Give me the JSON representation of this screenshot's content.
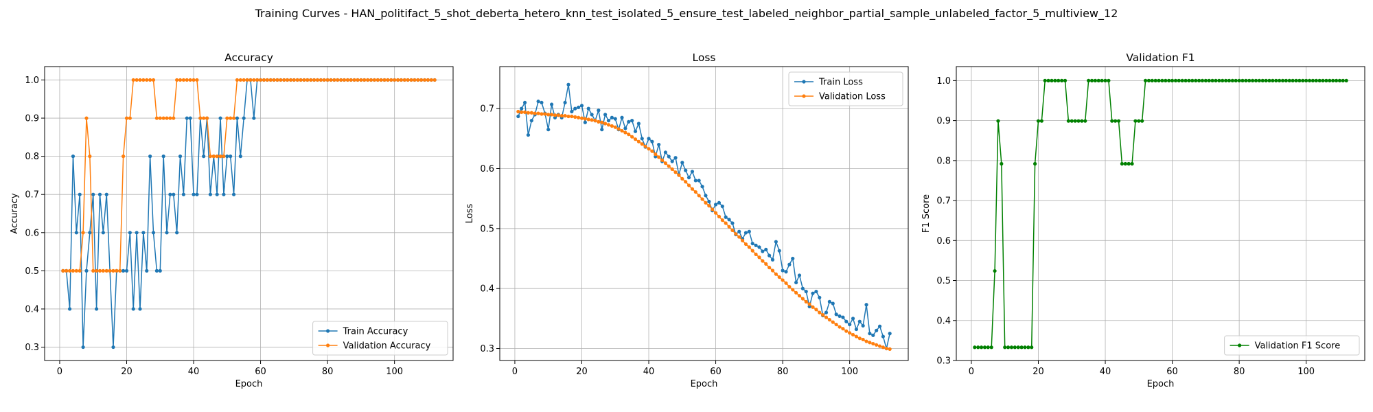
{
  "figure": {
    "suptitle": "Training Curves - HAN_politifact_5_shot_deberta_hetero_knn_test_isolated_5_ensure_test_labeled_neighbor_partial_sample_unlabeled_factor_5_multiview_12"
  },
  "colors": {
    "train": "#1f77b4",
    "validation": "#ff7f0e",
    "f1": "#008000",
    "grid": "#b0b0b0"
  },
  "chart_data": [
    {
      "type": "line",
      "title": "Accuracy",
      "xlabel": "Epoch",
      "ylabel": "Accuracy",
      "xlim": [
        -4.5,
        117.5
      ],
      "ylim": [
        0.265,
        1.035
      ],
      "xticks": [
        0,
        20,
        40,
        60,
        80,
        100
      ],
      "yticks": [
        0.3,
        0.4,
        0.5,
        0.6,
        0.7,
        0.8,
        0.9,
        1.0
      ],
      "ytick_labels": [
        "0.3",
        "0.4",
        "0.5",
        "0.6",
        "0.7",
        "0.8",
        "0.9",
        "1.0"
      ],
      "grid": true,
      "legend": "lower-right",
      "series": [
        {
          "name": "Train Accuracy",
          "color": "#1f77b4",
          "values": [
            0.5,
            0.5,
            0.4,
            0.8,
            0.6,
            0.7,
            0.3,
            0.5,
            0.6,
            0.7,
            0.4,
            0.7,
            0.6,
            0.7,
            0.5,
            0.3,
            0.5,
            0.5,
            0.5,
            0.5,
            0.6,
            0.4,
            0.6,
            0.4,
            0.6,
            0.5,
            0.8,
            0.6,
            0.5,
            0.5,
            0.8,
            0.6,
            0.7,
            0.7,
            0.6,
            0.8,
            0.7,
            0.9,
            0.9,
            0.7,
            0.7,
            0.9,
            0.8,
            0.9,
            0.7,
            0.8,
            0.7,
            0.9,
            0.7,
            0.8,
            0.8,
            0.7,
            0.9,
            0.8,
            0.9,
            1.0,
            1.0,
            0.9,
            1.0,
            1.0,
            1.0,
            1.0,
            1.0,
            1.0,
            1.0,
            1.0,
            1.0,
            1.0,
            1.0,
            1.0,
            1.0,
            1.0,
            1.0,
            1.0,
            1.0,
            1.0,
            1.0,
            1.0,
            1.0,
            1.0,
            1.0,
            1.0,
            1.0,
            1.0,
            1.0,
            1.0,
            1.0,
            1.0,
            1.0,
            1.0,
            1.0,
            1.0,
            1.0,
            1.0,
            1.0,
            1.0,
            1.0,
            1.0,
            1.0,
            1.0,
            1.0,
            1.0,
            1.0,
            1.0,
            1.0,
            1.0,
            1.0,
            1.0,
            1.0,
            1.0,
            1.0,
            1.0
          ]
        },
        {
          "name": "Validation Accuracy",
          "color": "#ff7f0e",
          "values": [
            0.5,
            0.5,
            0.5,
            0.5,
            0.5,
            0.5,
            0.6,
            0.9,
            0.8,
            0.5,
            0.5,
            0.5,
            0.5,
            0.5,
            0.5,
            0.5,
            0.5,
            0.5,
            0.8,
            0.9,
            0.9,
            1.0,
            1.0,
            1.0,
            1.0,
            1.0,
            1.0,
            1.0,
            0.9,
            0.9,
            0.9,
            0.9,
            0.9,
            0.9,
            1.0,
            1.0,
            1.0,
            1.0,
            1.0,
            1.0,
            1.0,
            0.9,
            0.9,
            0.9,
            0.8,
            0.8,
            0.8,
            0.8,
            0.8,
            0.9,
            0.9,
            0.9,
            1.0,
            1.0,
            1.0,
            1.0,
            1.0,
            1.0,
            1.0,
            1.0,
            1.0,
            1.0,
            1.0,
            1.0,
            1.0,
            1.0,
            1.0,
            1.0,
            1.0,
            1.0,
            1.0,
            1.0,
            1.0,
            1.0,
            1.0,
            1.0,
            1.0,
            1.0,
            1.0,
            1.0,
            1.0,
            1.0,
            1.0,
            1.0,
            1.0,
            1.0,
            1.0,
            1.0,
            1.0,
            1.0,
            1.0,
            1.0,
            1.0,
            1.0,
            1.0,
            1.0,
            1.0,
            1.0,
            1.0,
            1.0,
            1.0,
            1.0,
            1.0,
            1.0,
            1.0,
            1.0,
            1.0,
            1.0,
            1.0,
            1.0,
            1.0,
            1.0
          ]
        }
      ]
    },
    {
      "type": "line",
      "title": "Loss",
      "xlabel": "Epoch",
      "ylabel": "Loss",
      "xlim": [
        -4.5,
        117.5
      ],
      "ylim": [
        0.28,
        0.77
      ],
      "xticks": [
        0,
        20,
        40,
        60,
        80,
        100
      ],
      "yticks": [
        0.3,
        0.4,
        0.5,
        0.6,
        0.7
      ],
      "ytick_labels": [
        "0.3",
        "0.4",
        "0.5",
        "0.6",
        "0.7"
      ],
      "grid": true,
      "legend": "top-right",
      "series": [
        {
          "name": "Train Loss",
          "color": "#1f77b4",
          "values": [
            0.687,
            0.7,
            0.71,
            0.656,
            0.68,
            0.69,
            0.712,
            0.71,
            0.692,
            0.665,
            0.707,
            0.685,
            0.69,
            0.685,
            0.71,
            0.74,
            0.695,
            0.7,
            0.702,
            0.705,
            0.677,
            0.7,
            0.69,
            0.68,
            0.697,
            0.665,
            0.69,
            0.68,
            0.685,
            0.683,
            0.665,
            0.685,
            0.667,
            0.678,
            0.68,
            0.662,
            0.675,
            0.65,
            0.636,
            0.65,
            0.645,
            0.62,
            0.64,
            0.612,
            0.627,
            0.62,
            0.612,
            0.618,
            0.59,
            0.61,
            0.597,
            0.585,
            0.595,
            0.58,
            0.58,
            0.57,
            0.555,
            0.545,
            0.53,
            0.54,
            0.543,
            0.537,
            0.519,
            0.515,
            0.509,
            0.49,
            0.495,
            0.483,
            0.493,
            0.495,
            0.475,
            0.472,
            0.469,
            0.462,
            0.465,
            0.455,
            0.448,
            0.478,
            0.463,
            0.43,
            0.428,
            0.44,
            0.45,
            0.41,
            0.422,
            0.4,
            0.395,
            0.37,
            0.392,
            0.395,
            0.385,
            0.355,
            0.36,
            0.378,
            0.375,
            0.357,
            0.354,
            0.352,
            0.345,
            0.34,
            0.35,
            0.332,
            0.345,
            0.338,
            0.373,
            0.325,
            0.322,
            0.33,
            0.337,
            0.32,
            0.3,
            0.325
          ]
        },
        {
          "name": "Validation Loss",
          "color": "#ff7f0e",
          "values": [
            0.695,
            0.694,
            0.694,
            0.693,
            0.693,
            0.692,
            0.692,
            0.691,
            0.691,
            0.69,
            0.69,
            0.689,
            0.689,
            0.688,
            0.688,
            0.687,
            0.687,
            0.686,
            0.685,
            0.684,
            0.683,
            0.682,
            0.681,
            0.68,
            0.678,
            0.677,
            0.675,
            0.673,
            0.671,
            0.669,
            0.666,
            0.663,
            0.66,
            0.657,
            0.653,
            0.649,
            0.645,
            0.641,
            0.637,
            0.633,
            0.629,
            0.624,
            0.619,
            0.614,
            0.609,
            0.604,
            0.599,
            0.594,
            0.589,
            0.583,
            0.578,
            0.572,
            0.566,
            0.561,
            0.555,
            0.549,
            0.543,
            0.538,
            0.532,
            0.526,
            0.52,
            0.514,
            0.509,
            0.503,
            0.497,
            0.491,
            0.486,
            0.48,
            0.474,
            0.469,
            0.463,
            0.457,
            0.452,
            0.446,
            0.441,
            0.435,
            0.43,
            0.424,
            0.419,
            0.414,
            0.409,
            0.403,
            0.398,
            0.393,
            0.388,
            0.383,
            0.378,
            0.374,
            0.369,
            0.365,
            0.36,
            0.356,
            0.352,
            0.348,
            0.344,
            0.34,
            0.336,
            0.333,
            0.329,
            0.326,
            0.323,
            0.32,
            0.317,
            0.315,
            0.312,
            0.31,
            0.308,
            0.306,
            0.304,
            0.302,
            0.3,
            0.299
          ]
        }
      ]
    },
    {
      "type": "line",
      "title": "Validation F1",
      "xlabel": "Epoch",
      "ylabel": "F1 Score",
      "xlim": [
        -4.5,
        117.5
      ],
      "ylim": [
        0.3,
        1.035
      ],
      "xticks": [
        0,
        20,
        40,
        60,
        80,
        100
      ],
      "yticks": [
        0.3,
        0.4,
        0.5,
        0.6,
        0.7,
        0.8,
        0.9,
        1.0
      ],
      "ytick_labels": [
        "0.3",
        "0.4",
        "0.5",
        "0.6",
        "0.7",
        "0.8",
        "0.9",
        "1.0"
      ],
      "grid": true,
      "legend": "lower-right",
      "series": [
        {
          "name": "Validation F1 Score",
          "color": "#008000",
          "values": [
            0.333,
            0.333,
            0.333,
            0.333,
            0.333,
            0.333,
            0.524,
            0.899,
            0.792,
            0.333,
            0.333,
            0.333,
            0.333,
            0.333,
            0.333,
            0.333,
            0.333,
            0.333,
            0.792,
            0.899,
            0.899,
            1.0,
            1.0,
            1.0,
            1.0,
            1.0,
            1.0,
            1.0,
            0.899,
            0.899,
            0.899,
            0.899,
            0.899,
            0.899,
            1.0,
            1.0,
            1.0,
            1.0,
            1.0,
            1.0,
            1.0,
            0.899,
            0.899,
            0.899,
            0.792,
            0.792,
            0.792,
            0.792,
            0.899,
            0.899,
            0.899,
            1.0,
            1.0,
            1.0,
            1.0,
            1.0,
            1.0,
            1.0,
            1.0,
            1.0,
            1.0,
            1.0,
            1.0,
            1.0,
            1.0,
            1.0,
            1.0,
            1.0,
            1.0,
            1.0,
            1.0,
            1.0,
            1.0,
            1.0,
            1.0,
            1.0,
            1.0,
            1.0,
            1.0,
            1.0,
            1.0,
            1.0,
            1.0,
            1.0,
            1.0,
            1.0,
            1.0,
            1.0,
            1.0,
            1.0,
            1.0,
            1.0,
            1.0,
            1.0,
            1.0,
            1.0,
            1.0,
            1.0,
            1.0,
            1.0,
            1.0,
            1.0,
            1.0,
            1.0,
            1.0,
            1.0,
            1.0,
            1.0,
            1.0,
            1.0,
            1.0,
            1.0
          ]
        }
      ]
    }
  ]
}
